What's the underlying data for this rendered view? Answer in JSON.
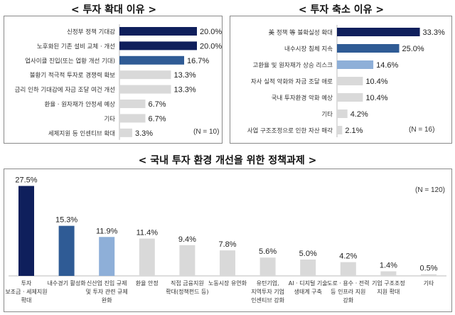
{
  "chart_data": [
    {
      "type": "bar",
      "orientation": "horizontal",
      "title": "< 투자 확대 이유 >",
      "categories": [
        "신정부 정책 기대감",
        "노후화된 기존 설비 교체 · 개선",
        "업사이클 진입(또는 업황 개선 기대)",
        "불황기 적극적 투자로 경쟁력 확보",
        "금리 인하 기대감에 자금 조달 여건 개선",
        "환율 · 원자재가 안정세 예상",
        "기타",
        "세제지원 등 인센티브 확대"
      ],
      "values": [
        20.0,
        20.0,
        16.7,
        13.3,
        13.3,
        6.7,
        6.7,
        3.3
      ],
      "labels": [
        "20.0%",
        "20.0%",
        "16.7%",
        "13.3%",
        "13.3%",
        "6.7%",
        "6.7%",
        "3.3%"
      ],
      "colors": [
        "#0f1f5c",
        "#0f1f5c",
        "#2f5b95",
        "#d9d9d9",
        "#d9d9d9",
        "#d9d9d9",
        "#d9d9d9",
        "#d9d9d9"
      ],
      "note": "(N = 10)"
    },
    {
      "type": "bar",
      "orientation": "horizontal",
      "title": "< 투자 축소 이유 >",
      "categories": [
        "美 정책 等 불확실성 확대",
        "내수시장 침체 지속",
        "고환율 및 원자재가 상승 리스크",
        "자사 실적 악화와 자금 조달 애로",
        "국내 투자환경 악화 예상",
        "기타",
        "사업 구조조정으로 인한 자산 매각"
      ],
      "values": [
        33.3,
        25.0,
        14.6,
        10.4,
        10.4,
        4.2,
        2.1
      ],
      "labels": [
        "33.3%",
        "25.0%",
        "14.6%",
        "10.4%",
        "10.4%",
        "4.2%",
        "2.1%"
      ],
      "colors": [
        "#0f1f5c",
        "#2f5b95",
        "#8eafd8",
        "#d9d9d9",
        "#d9d9d9",
        "#d9d9d9",
        "#d9d9d9"
      ],
      "note": "(N = 16)"
    },
    {
      "type": "bar",
      "orientation": "vertical",
      "title": "< 국내 투자 환경 개선을 위한 정책과제 >",
      "categories": [
        [
          "투자",
          "보조금 · 세제지원",
          "확대"
        ],
        [
          "내수경기 활성화"
        ],
        [
          "신산업 진입 규제",
          "및 투자 관련 규제",
          "완화"
        ],
        [
          "환율 안정"
        ],
        [
          "직접 금융지원",
          "확대(정책펀드 등)"
        ],
        [
          "노동시장 유연화"
        ],
        [
          "유턴기업,",
          "지역투자 기업",
          "인센티브 강화"
        ],
        [
          "AI · 디지털 기술",
          "생태계 구축"
        ],
        [
          "도로 · 용수 · 전력",
          "등 인프라 지원",
          "강화"
        ],
        [
          "기업 구조조정",
          "지원 확대"
        ],
        [
          "기타"
        ]
      ],
      "values": [
        27.5,
        15.3,
        11.9,
        11.4,
        9.4,
        7.8,
        5.6,
        5.0,
        4.2,
        1.4,
        0.5
      ],
      "labels": [
        "27.5%",
        "15.3%",
        "11.9%",
        "11.4%",
        "9.4%",
        "7.8%",
        "5.6%",
        "5.0%",
        "4.2%",
        "1.4%",
        "0.5%"
      ],
      "colors": [
        "#0f1f5c",
        "#2f5b95",
        "#8eafd8",
        "#d9d9d9",
        "#d9d9d9",
        "#d9d9d9",
        "#d9d9d9",
        "#d9d9d9",
        "#d9d9d9",
        "#d9d9d9",
        "#d9d9d9"
      ],
      "note": "(N = 120)"
    }
  ]
}
